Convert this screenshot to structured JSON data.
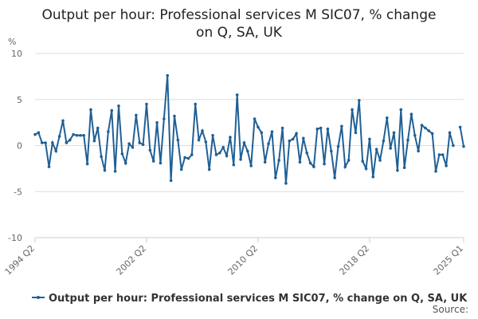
{
  "chart_data": {
    "type": "line",
    "title": "Output per hour: Professional services M SIC07, % change on Q, SA, UK",
    "y_label": "%",
    "source": "Source:",
    "categories": [
      "1994 Q2",
      null,
      null,
      null,
      null,
      null,
      null,
      null,
      null,
      null,
      null,
      null,
      null,
      null,
      null,
      null,
      null,
      null,
      null,
      null,
      null,
      null,
      null,
      null,
      null,
      null,
      null,
      null,
      null,
      null,
      null,
      null,
      "2002 Q2",
      null,
      null,
      null,
      null,
      null,
      null,
      null,
      null,
      null,
      null,
      null,
      null,
      null,
      null,
      null,
      null,
      null,
      null,
      null,
      null,
      null,
      null,
      null,
      null,
      null,
      null,
      null,
      null,
      null,
      null,
      null,
      "2010 Q2",
      null,
      null,
      null,
      null,
      null,
      null,
      null,
      null,
      null,
      null,
      null,
      null,
      null,
      null,
      null,
      null,
      null,
      null,
      null,
      null,
      null,
      null,
      null,
      null,
      null,
      null,
      null,
      null,
      null,
      null,
      null,
      "2018 Q2",
      null,
      null,
      null,
      null,
      null,
      null,
      null,
      null,
      null,
      null,
      null,
      null,
      null,
      null,
      null,
      null,
      null,
      null,
      null,
      null,
      null,
      null,
      null,
      null,
      null,
      null,
      "2025 Q1"
    ],
    "series": [
      {
        "name": "Output per hour: Professional services M SIC07, % change on Q, SA, UK",
        "color": "#206095",
        "values": [
          1.2,
          1.4,
          0.3,
          0.3,
          -2.3,
          0.3,
          -0.6,
          1.0,
          2.7,
          0.3,
          0.6,
          1.2,
          1.1,
          1.1,
          1.1,
          -2.0,
          3.9,
          0.5,
          1.9,
          -1.2,
          -2.7,
          1.5,
          3.8,
          -2.8,
          4.3,
          -0.9,
          -1.9,
          0.2,
          -0.2,
          3.3,
          0.3,
          0.1,
          4.5,
          -0.5,
          -1.7,
          2.5,
          -1.9,
          2.9,
          7.6,
          -3.8,
          3.2,
          0.6,
          -2.6,
          -1.3,
          -1.4,
          -1.0,
          4.5,
          0.6,
          1.6,
          0.4,
          -2.6,
          1.1,
          -1.0,
          -0.8,
          -0.2,
          -1.1,
          0.9,
          -2.1,
          5.5,
          -1.5,
          0.3,
          -0.6,
          -2.2,
          2.9,
          2.0,
          1.4,
          -1.8,
          0.2,
          1.5,
          -3.5,
          -1.6,
          1.9,
          -4.1,
          0.5,
          0.7,
          1.3,
          -1.8,
          0.8,
          -0.8,
          -1.9,
          -2.3,
          1.8,
          1.9,
          -2.0,
          1.8,
          -0.6,
          -3.5,
          -0.1,
          2.1,
          -2.3,
          -1.6,
          3.9,
          1.4,
          4.9,
          -1.7,
          -2.5,
          0.7,
          -3.4,
          -0.4,
          -1.6,
          0.5,
          3.0,
          -0.3,
          1.4,
          -2.7,
          3.9,
          -2.4,
          0.6,
          3.4,
          1.1,
          -0.6,
          2.2,
          1.9,
          1.6,
          1.3,
          -2.8,
          -1.0,
          -1.0,
          -2.2,
          1.4,
          0.0,
          null,
          2.0,
          -0.1
        ]
      }
    ],
    "ylim": [
      -10,
      10
    ],
    "yticks": [
      -10,
      -5,
      0,
      5,
      10
    ],
    "grid": true,
    "legend": "bottom"
  }
}
